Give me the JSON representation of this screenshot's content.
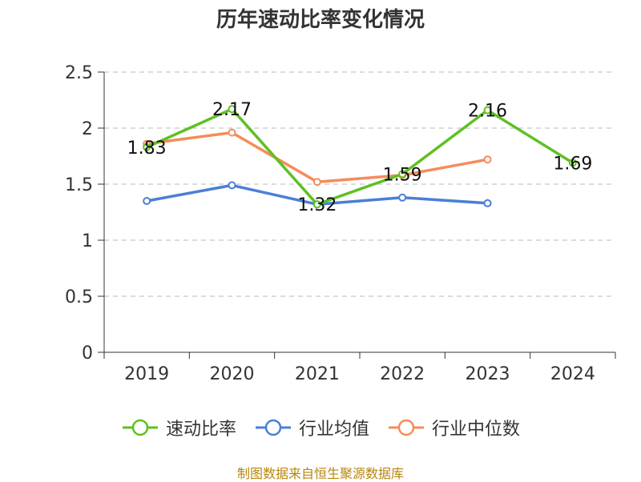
{
  "chart_data": {
    "type": "line",
    "title": "历年速动比率变化情况",
    "categories": [
      "2019",
      "2020",
      "2021",
      "2022",
      "2023",
      "2024"
    ],
    "ylim": [
      0,
      2.5
    ],
    "yticks": [
      "0",
      "0.5",
      "1",
      "1.5",
      "2",
      "2.5"
    ],
    "grid": true,
    "legend_position": "bottom",
    "series": [
      {
        "name": "速动比率",
        "color": "#5ec022",
        "values": [
          1.83,
          2.17,
          1.32,
          1.59,
          2.16,
          1.69
        ],
        "labels": [
          "1.83",
          "2.17",
          "1.32",
          "1.59",
          "2.16",
          "1.69"
        ]
      },
      {
        "name": "行业均值",
        "color": "#4a7fd6",
        "values": [
          1.35,
          1.49,
          1.32,
          1.38,
          1.33,
          null
        ]
      },
      {
        "name": "行业中位数",
        "color": "#f58c5b",
        "values": [
          1.86,
          1.96,
          1.52,
          1.58,
          1.72,
          null
        ]
      }
    ]
  },
  "footer": {
    "source": "制图数据来自恒生聚源数据库"
  }
}
